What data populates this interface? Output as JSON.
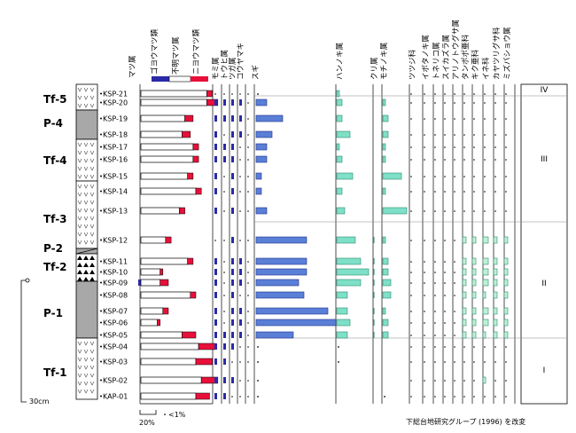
{
  "chart_data": {
    "type": "bar",
    "chart_subtype": "pollen-diagram",
    "samples": [
      "KSP-21",
      "KSP-20",
      "KSP-19",
      "KSP-18",
      "KSP-17",
      "KSP-16",
      "KSP-15",
      "KSP-14",
      "KSP-13",
      "KSP-12",
      "KSP-11",
      "KSP-10",
      "KSP-09",
      "KSP-08",
      "KSP-07",
      "KSP-06",
      "KSP-05",
      "KSP-04",
      "KSP-03",
      "KSP-02",
      "KAP-01"
    ],
    "units": [
      "Tf-5",
      "P-4",
      "Tf-4",
      "Tf-3",
      "P-2",
      "Tf-2",
      "P-1",
      "Tf-1"
    ],
    "pine_header": "マツ属",
    "pine_legend": [
      "ゴヨウマツ類",
      "不明マツ属",
      "ニヨウマツ類"
    ],
    "taxa": {
      "conifer": [
        "モミ属",
        "トウヒ属",
        "ツガ属",
        "コウヤマキ",
        "スギ"
      ],
      "hardwood": [
        "ハンノキ属",
        "クリ属",
        "モチノキ属"
      ],
      "herb": [
        "ツツジ科",
        "イボタノキ属",
        "トネリコ属",
        "スイカズラ属",
        "アリノトウグサ属",
        "タンポポ亜科",
        "キク亜科",
        "イネ科",
        "カヤツリグサ科",
        "ミズバショウ属"
      ]
    },
    "pine_values": [
      {
        "goyo": 0,
        "unknown": 24,
        "niyo": 2
      },
      {
        "goyo": 0,
        "unknown": 24,
        "niyo": 4
      },
      {
        "goyo": 0,
        "unknown": 16,
        "niyo": 3
      },
      {
        "goyo": 0,
        "unknown": 15,
        "niyo": 3
      },
      {
        "goyo": 0,
        "unknown": 19,
        "niyo": 2
      },
      {
        "goyo": 0,
        "unknown": 19,
        "niyo": 2
      },
      {
        "goyo": 0,
        "unknown": 17,
        "niyo": 2
      },
      {
        "goyo": 0,
        "unknown": 20,
        "niyo": 2
      },
      {
        "goyo": 0,
        "unknown": 14,
        "niyo": 2
      },
      {
        "goyo": 0,
        "unknown": 9,
        "niyo": 2
      },
      {
        "goyo": 0,
        "unknown": 17,
        "niyo": 2
      },
      {
        "goyo": 0,
        "unknown": 7,
        "niyo": 1
      },
      {
        "goyo": 1,
        "unknown": 7,
        "niyo": 3
      },
      {
        "goyo": 0,
        "unknown": 18,
        "niyo": 2
      },
      {
        "goyo": 0,
        "unknown": 8,
        "niyo": 2
      },
      {
        "goyo": 0,
        "unknown": 6,
        "niyo": 1
      },
      {
        "goyo": 0,
        "unknown": 15,
        "niyo": 5
      },
      {
        "goyo": 0,
        "unknown": 21,
        "niyo": 6
      },
      {
        "goyo": 0,
        "unknown": 20,
        "niyo": 6
      },
      {
        "goyo": 0,
        "unknown": 22,
        "niyo": 6
      },
      {
        "goyo": 0,
        "unknown": 20,
        "niyo": 5
      }
    ],
    "sugi": [
      0,
      4,
      10,
      6,
      4,
      4,
      2,
      2,
      4,
      19,
      19,
      19,
      16,
      18,
      27,
      30,
      14,
      0.5,
      0.5,
      0.5,
      0.5
    ],
    "hannoki": [
      1,
      2,
      2,
      5,
      1,
      2,
      6,
      2,
      3,
      7,
      9,
      12,
      9,
      4,
      4,
      5,
      4,
      0.5,
      0.5,
      0,
      0
    ],
    "mochinoki": [
      0,
      1,
      2,
      2,
      1,
      1,
      7,
      1,
      9,
      1,
      2,
      2,
      3,
      3,
      1,
      2,
      2,
      0,
      0,
      0,
      0.5
    ],
    "ine": [
      0,
      0.5,
      0,
      0,
      0,
      0,
      0,
      0,
      0,
      2,
      2,
      2,
      2,
      1,
      2,
      2,
      1,
      0.5,
      0.5,
      1,
      0.5
    ],
    "zones": [
      "IV",
      "III",
      "II",
      "I"
    ],
    "scale_label": "20%",
    "trace_label": "・<1%",
    "depth_label": "30cm",
    "credit": "下総台地研究グループ (1996) を改変"
  }
}
